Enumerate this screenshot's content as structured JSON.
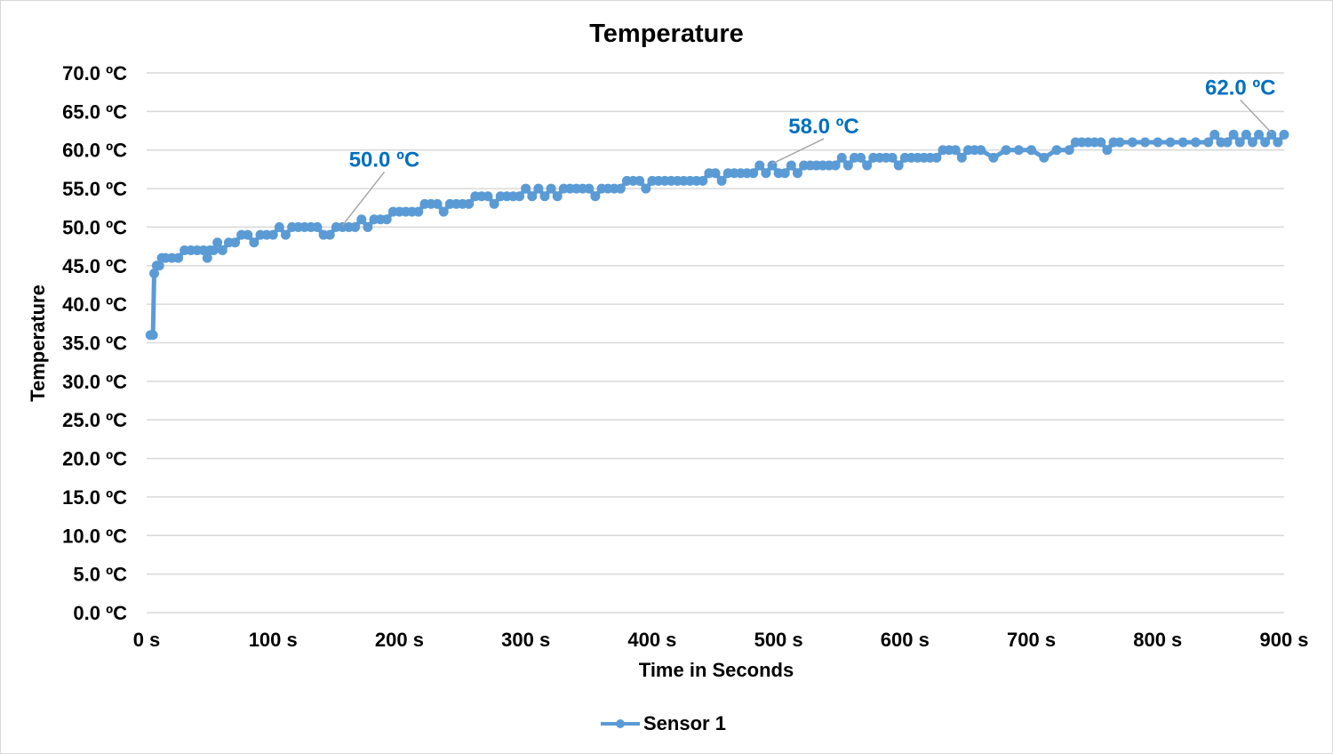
{
  "colors": {
    "series": "#5B9BD5",
    "annotation": "#0070C0",
    "grid": "#D9D9D9",
    "leader": "#A6A6A6"
  },
  "chart_data": {
    "type": "line",
    "title": "Temperature",
    "xlabel": "Time in Seconds",
    "ylabel": "Temperature",
    "xlim": [
      0,
      900
    ],
    "ylim": [
      0,
      70
    ],
    "x_ticks": [
      0,
      100,
      200,
      300,
      400,
      500,
      600,
      700,
      800,
      900
    ],
    "x_tick_labels": [
      "0 s",
      "100 s",
      "200 s",
      "300 s",
      "400 s",
      "500 s",
      "600 s",
      "700 s",
      "800 s",
      "900 s"
    ],
    "y_ticks": [
      0,
      5,
      10,
      15,
      20,
      25,
      30,
      35,
      40,
      45,
      50,
      55,
      60,
      65,
      70
    ],
    "y_tick_labels": [
      "0.0 ºC",
      "5.0 ºC",
      "10.0 ºC",
      "15.0 ºC",
      "20.0 ºC",
      "25.0 ºC",
      "30.0 ºC",
      "35.0 ºC",
      "40.0 ºC",
      "45.0 ºC",
      "50.0 ºC",
      "55.0 ºC",
      "60.0 ºC",
      "65.0 ºC",
      "70.0 ºC"
    ],
    "grid": true,
    "legend": "bottom",
    "series": [
      {
        "name": "Sensor 1",
        "x": [
          3,
          5,
          6,
          8,
          10,
          12,
          15,
          20,
          25,
          30,
          35,
          40,
          45,
          48,
          50,
          53,
          56,
          60,
          65,
          70,
          75,
          80,
          85,
          90,
          95,
          100,
          105,
          110,
          115,
          120,
          125,
          130,
          135,
          140,
          145,
          150,
          155,
          160,
          165,
          170,
          175,
          180,
          185,
          190,
          195,
          200,
          205,
          210,
          215,
          220,
          225,
          230,
          235,
          240,
          245,
          250,
          255,
          260,
          265,
          270,
          275,
          280,
          285,
          290,
          295,
          300,
          305,
          310,
          315,
          320,
          325,
          330,
          335,
          340,
          345,
          350,
          355,
          360,
          365,
          370,
          375,
          380,
          385,
          390,
          395,
          400,
          405,
          410,
          415,
          420,
          425,
          430,
          435,
          440,
          445,
          450,
          455,
          460,
          465,
          470,
          475,
          480,
          485,
          490,
          495,
          500,
          505,
          510,
          515,
          520,
          525,
          530,
          535,
          540,
          545,
          550,
          555,
          560,
          565,
          570,
          575,
          580,
          585,
          590,
          595,
          600,
          605,
          610,
          615,
          620,
          625,
          630,
          635,
          640,
          645,
          650,
          655,
          660,
          670,
          680,
          690,
          700,
          710,
          720,
          730,
          735,
          740,
          745,
          750,
          755,
          760,
          765,
          770,
          780,
          790,
          800,
          810,
          820,
          830,
          840,
          845,
          850,
          855,
          860,
          865,
          870,
          875,
          880,
          885,
          890,
          895,
          900
        ],
        "y": [
          36,
          36,
          44,
          45,
          45,
          46,
          46,
          46,
          46,
          47,
          47,
          47,
          47,
          46,
          47,
          47,
          48,
          47,
          48,
          48,
          49,
          49,
          48,
          49,
          49,
          49,
          50,
          49,
          50,
          50,
          50,
          50,
          50,
          49,
          49,
          50,
          50,
          50,
          50,
          51,
          50,
          51,
          51,
          51,
          52,
          52,
          52,
          52,
          52,
          53,
          53,
          53,
          52,
          53,
          53,
          53,
          53,
          54,
          54,
          54,
          53,
          54,
          54,
          54,
          54,
          55,
          54,
          55,
          54,
          55,
          54,
          55,
          55,
          55,
          55,
          55,
          54,
          55,
          55,
          55,
          55,
          56,
          56,
          56,
          55,
          56,
          56,
          56,
          56,
          56,
          56,
          56,
          56,
          56,
          57,
          57,
          56,
          57,
          57,
          57,
          57,
          57,
          58,
          57,
          58,
          57,
          57,
          58,
          57,
          58,
          58,
          58,
          58,
          58,
          58,
          59,
          58,
          59,
          59,
          58,
          59,
          59,
          59,
          59,
          58,
          59,
          59,
          59,
          59,
          59,
          59,
          60,
          60,
          60,
          59,
          60,
          60,
          60,
          59,
          60,
          60,
          60,
          59,
          60,
          60,
          61,
          61,
          61,
          61,
          61,
          60,
          61,
          61,
          61,
          61,
          61,
          61,
          61,
          61,
          61,
          62,
          61,
          61,
          62,
          61,
          62,
          61,
          62,
          61,
          62,
          61,
          62
        ]
      }
    ],
    "annotations": [
      {
        "x": 155,
        "y": 50,
        "label": "50.0 ºC"
      },
      {
        "x": 495,
        "y": 58,
        "label": "58.0 ºC"
      },
      {
        "x": 890,
        "y": 62,
        "label": "62.0 ºC"
      }
    ]
  }
}
